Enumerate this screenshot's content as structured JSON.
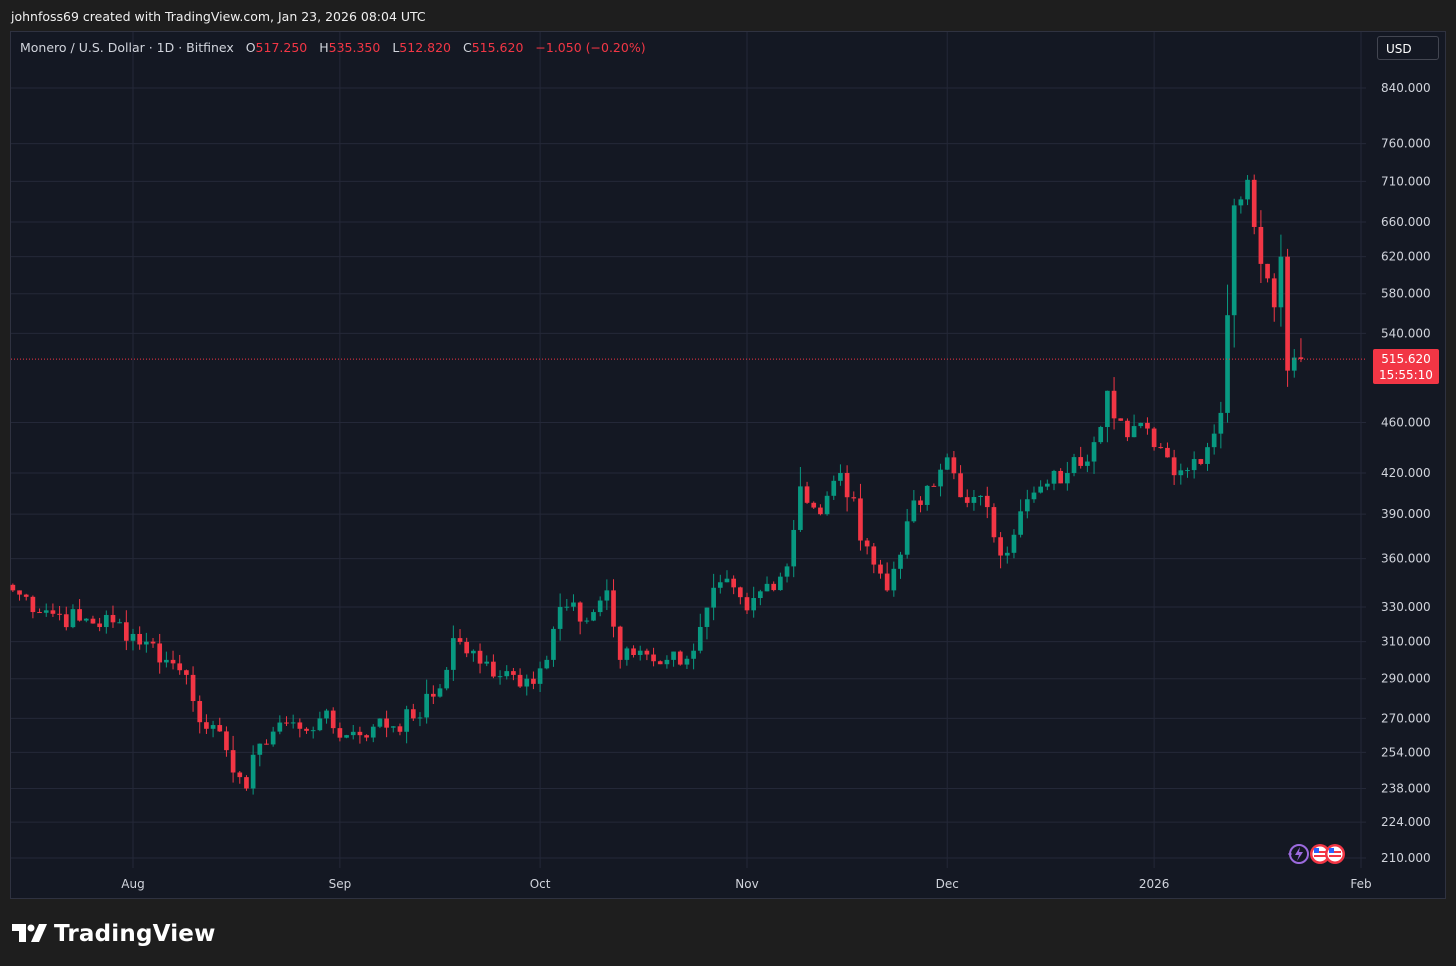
{
  "header": {
    "credit": "johnfoss69 created with TradingView.com, Jan 23, 2026 08:04 UTC"
  },
  "legend": {
    "symbol": "Monero / U.S. Dollar · 1D · Bitfinex",
    "open_label": "O",
    "open": "517.250",
    "high_label": "H",
    "high": "535.350",
    "low_label": "L",
    "low": "512.820",
    "close_label": "C",
    "close": "515.620",
    "change": "−1.050 (−0.20%)"
  },
  "currency_button": "USD",
  "last_price": {
    "price": "515.620",
    "countdown": "15:55:10"
  },
  "brand": {
    "name": "TradingView"
  },
  "colors": {
    "up": "#089981",
    "down": "#f23645",
    "background": "#141823",
    "grid": "#242838"
  },
  "chart_data": {
    "type": "candlestick",
    "scale": "log",
    "y_ticks": [
      210,
      224,
      238,
      254,
      270,
      290,
      310,
      330,
      360,
      390,
      420,
      460,
      540,
      580,
      620,
      660,
      710,
      760,
      840
    ],
    "y_tick_labels": [
      "210.000",
      "224.000",
      "238.000",
      "254.000",
      "270.000",
      "290.000",
      "310.000",
      "330.000",
      "360.000",
      "390.000",
      "420.000",
      "460.000",
      "540.000",
      "580.000",
      "620.000",
      "660.000",
      "710.000",
      "760.000",
      "840.000"
    ],
    "x_ticks": [
      {
        "label": "Aug",
        "date": "2025-08-01"
      },
      {
        "label": "Sep",
        "date": "2025-09-01"
      },
      {
        "label": "Oct",
        "date": "2025-10-01"
      },
      {
        "label": "Nov",
        "date": "2025-11-01"
      },
      {
        "label": "Dec",
        "date": "2025-12-01"
      },
      {
        "label": "2026",
        "date": "2026-01-01"
      },
      {
        "label": "Feb",
        "date": "2026-02-01"
      }
    ],
    "last_price": 515.62,
    "anchors": [
      [
        "2025-07-14",
        340
      ],
      [
        "2025-07-19",
        328
      ],
      [
        "2025-07-24",
        322
      ],
      [
        "2025-07-29",
        321
      ],
      [
        "2025-08-03",
        310
      ],
      [
        "2025-08-06",
        300
      ],
      [
        "2025-08-09",
        292
      ],
      [
        "2025-08-12",
        265
      ],
      [
        "2025-08-15",
        255
      ],
      [
        "2025-08-18",
        238
      ],
      [
        "2025-08-20",
        258
      ],
      [
        "2025-08-23",
        268
      ],
      [
        "2025-08-26",
        265
      ],
      [
        "2025-08-29",
        270
      ],
      [
        "2025-09-02",
        262
      ],
      [
        "2025-09-06",
        266
      ],
      [
        "2025-09-12",
        270
      ],
      [
        "2025-09-16",
        285
      ],
      [
        "2025-09-18",
        312
      ],
      [
        "2025-09-22",
        298
      ],
      [
        "2025-09-26",
        294
      ],
      [
        "2025-09-29",
        290
      ],
      [
        "2025-10-02",
        300
      ],
      [
        "2025-10-04",
        330
      ],
      [
        "2025-10-08",
        322
      ],
      [
        "2025-10-11",
        340
      ],
      [
        "2025-10-13",
        300
      ],
      [
        "2025-10-16",
        305
      ],
      [
        "2025-10-20",
        300
      ],
      [
        "2025-10-24",
        305
      ],
      [
        "2025-10-28",
        345
      ],
      [
        "2025-11-01",
        328
      ],
      [
        "2025-11-04",
        344
      ],
      [
        "2025-11-07",
        355
      ],
      [
        "2025-11-09",
        410
      ],
      [
        "2025-11-12",
        390
      ],
      [
        "2025-11-15",
        420
      ],
      [
        "2025-11-19",
        368
      ],
      [
        "2025-11-22",
        340
      ],
      [
        "2025-11-25",
        385
      ],
      [
        "2025-11-29",
        410
      ],
      [
        "2025-12-01",
        432
      ],
      [
        "2025-12-04",
        398
      ],
      [
        "2025-12-07",
        395
      ],
      [
        "2025-12-09",
        362
      ],
      [
        "2025-12-12",
        392
      ],
      [
        "2025-12-16",
        412
      ],
      [
        "2025-12-19",
        420
      ],
      [
        "2025-12-23",
        444
      ],
      [
        "2025-12-25",
        487
      ],
      [
        "2025-12-28",
        448
      ],
      [
        "2025-12-31",
        455
      ],
      [
        "2026-01-03",
        432
      ],
      [
        "2026-01-05",
        422
      ],
      [
        "2026-01-09",
        440
      ],
      [
        "2026-01-11",
        468
      ],
      [
        "2026-01-12",
        558
      ],
      [
        "2026-01-13",
        680
      ],
      [
        "2026-01-15",
        712
      ],
      [
        "2026-01-17",
        612
      ],
      [
        "2026-01-19",
        566
      ],
      [
        "2026-01-20",
        620
      ],
      [
        "2026-01-21",
        505
      ],
      [
        "2026-01-22",
        517
      ],
      [
        "2026-01-23",
        515.62
      ]
    ],
    "last_candle": {
      "date": "2026-01-23",
      "open": 517.25,
      "high": 535.35,
      "low": 512.82,
      "close": 515.62
    }
  }
}
